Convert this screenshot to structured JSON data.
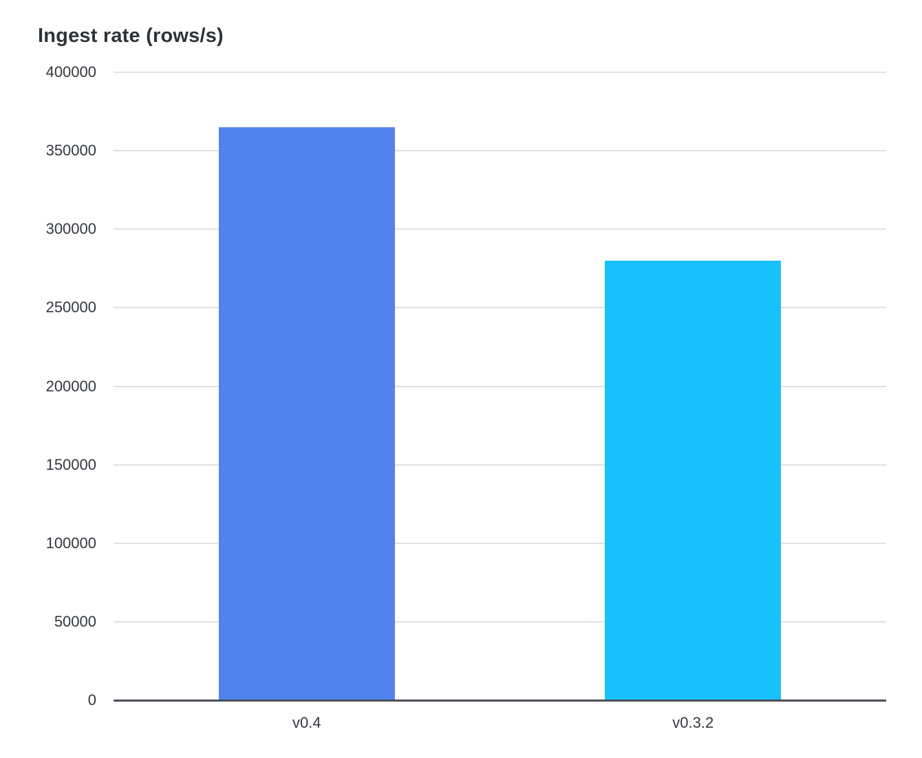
{
  "chart_data": {
    "type": "bar",
    "title": "Ingest rate (rows/s)",
    "categories": [
      "v0.4",
      "v0.3.2"
    ],
    "values": [
      365000,
      280000
    ],
    "bar_colors": [
      "#5283EC",
      "#18C1FB"
    ],
    "xlabel": "",
    "ylabel": "",
    "ylim": [
      0,
      400000
    ],
    "ytick_step": 50000,
    "ytick_labels": [
      "0",
      "50000",
      "100000",
      "150000",
      "200000",
      "250000",
      "300000",
      "350000",
      "400000"
    ],
    "grid": "horizontal",
    "legend_position": "none",
    "gridline_color": "#e1e1e4",
    "axis_line_color": "#4b5056",
    "text_color": "#33383e",
    "title_color": "#2e3338",
    "background_color": "#ffffff"
  }
}
